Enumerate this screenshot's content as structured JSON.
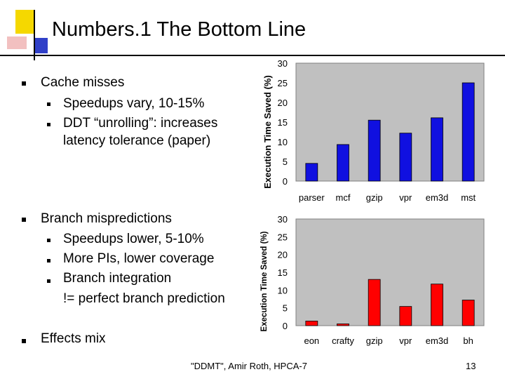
{
  "slide": {
    "title": "Numbers.1  The Bottom Line",
    "bullets": [
      {
        "text": "Cache misses",
        "subs": [
          "Speedups vary, 10-15%",
          "DDT “unrolling”: increases",
          "latency tolerance (paper)"
        ]
      },
      {
        "text": "Branch mispredictions",
        "subs": [
          "Speedups lower, 5-10%",
          "More PIs, lower coverage",
          "Branch integration",
          "!= perfect branch prediction"
        ]
      },
      {
        "text": "Effects mix"
      }
    ],
    "footer": "\"DDMT\", Amir Roth, HPCA-7",
    "page_number": "13"
  },
  "colors": {
    "accent_yellow": "#f5d800",
    "accent_blue": "#3040c8",
    "accent_red": "#e03030",
    "bar_blue": "#1010e0",
    "bar_red": "#ff0000",
    "plot_bg": "#c0c0c0"
  },
  "chart_data": [
    {
      "type": "bar",
      "categories": [
        "parser",
        "mcf",
        "gzip",
        "vpr",
        "em3d",
        "mst"
      ],
      "values": [
        4.5,
        9.3,
        15.5,
        12.2,
        16.1,
        25.0
      ],
      "ylabel": "Execution Time Saved (%)",
      "ylim": [
        0,
        30
      ],
      "yticks": [
        "0",
        "5",
        "10",
        "15",
        "20",
        "25",
        "30"
      ],
      "color": "#1010e0",
      "grid": false
    },
    {
      "type": "bar",
      "categories": [
        "eon",
        "crafty",
        "gzip",
        "vpr",
        "em3d",
        "bh"
      ],
      "values": [
        1.3,
        0.5,
        13.0,
        5.4,
        11.7,
        7.2
      ],
      "ylabel": "Execution Time Saved (%)",
      "ylim": [
        0,
        30
      ],
      "yticks": [
        "0",
        "5",
        "10",
        "15",
        "20",
        "25",
        "30"
      ],
      "color": "#ff0000",
      "grid": false
    }
  ]
}
